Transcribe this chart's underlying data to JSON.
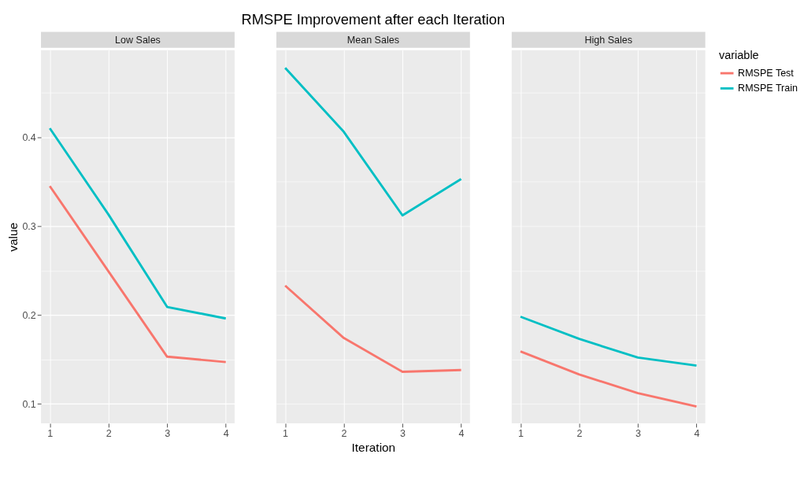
{
  "chart_data": [
    {
      "type": "line",
      "subtitle": "Low Sales",
      "ylabel": "value",
      "x": [
        1,
        2,
        3,
        4
      ],
      "xlim": [
        0.85,
        4.15
      ],
      "xticks": [
        1,
        2,
        3,
        4
      ],
      "ylim": [
        0.078,
        0.498
      ],
      "yticks": [
        {
          "value": 0.1,
          "label": "0.1"
        },
        {
          "value": 0.15,
          "label": null
        },
        {
          "value": 0.2,
          "label": "0.2"
        },
        {
          "value": 0.25,
          "label": null
        },
        {
          "value": 0.3,
          "label": "0.3"
        },
        {
          "value": 0.35,
          "label": null
        },
        {
          "value": 0.4,
          "label": "0.4"
        },
        {
          "value": 0.45,
          "label": null
        }
      ],
      "grid": true,
      "legend": "right",
      "line_style": "solid",
      "marker": "none",
      "series": [
        {
          "name": "RMSPE Test",
          "color": "#f8766d",
          "values": [
            0.345,
            0.249,
            0.153,
            0.147
          ]
        },
        {
          "name": "RMSPE Train",
          "color": "#00bfc4",
          "values": [
            0.41,
            0.313,
            0.209,
            0.196
          ]
        }
      ]
    },
    {
      "type": "line",
      "title": "RMSPE Improvement after each Iteration",
      "subtitle": "Mean Sales",
      "xlabel": "Iteration",
      "x": [
        1,
        2,
        3,
        4
      ],
      "xlim": [
        0.85,
        4.15
      ],
      "xticks": [
        1,
        2,
        3,
        4
      ],
      "ylim": [
        0.078,
        0.498
      ],
      "yticks": [
        {
          "value": 0.1,
          "label": null
        },
        {
          "value": 0.15,
          "label": null
        },
        {
          "value": 0.2,
          "label": null
        },
        {
          "value": 0.25,
          "label": null
        },
        {
          "value": 0.3,
          "label": null
        },
        {
          "value": 0.35,
          "label": null
        },
        {
          "value": 0.4,
          "label": null
        },
        {
          "value": 0.45,
          "label": null
        }
      ],
      "tick_labels": "x",
      "grid": true,
      "legend": "right",
      "line_style": "solid",
      "marker": "none",
      "series": [
        {
          "name": "RMSPE Test",
          "color": "#f8766d",
          "values": [
            0.233,
            0.174,
            0.136,
            0.138
          ]
        },
        {
          "name": "RMSPE Train",
          "color": "#00bfc4",
          "values": [
            0.478,
            0.406,
            0.312,
            0.353
          ]
        }
      ]
    },
    {
      "type": "line",
      "subtitle": "High Sales",
      "x": [
        1,
        2,
        3,
        4
      ],
      "xlim": [
        0.85,
        4.15
      ],
      "xticks": [
        1,
        2,
        3,
        4
      ],
      "ylim": [
        0.078,
        0.498
      ],
      "yticks": [
        {
          "value": 0.1,
          "label": null
        },
        {
          "value": 0.15,
          "label": null
        },
        {
          "value": 0.2,
          "label": null
        },
        {
          "value": 0.25,
          "label": null
        },
        {
          "value": 0.3,
          "label": null
        },
        {
          "value": 0.35,
          "label": null
        },
        {
          "value": 0.4,
          "label": null
        },
        {
          "value": 0.45,
          "label": null
        }
      ],
      "tick_labels": "x",
      "grid": true,
      "legend": "right",
      "legend_title": "variable",
      "line_style": "solid",
      "marker": "none",
      "series": [
        {
          "name": "RMSPE Test",
          "color": "#f8766d",
          "values": [
            0.159,
            0.133,
            0.112,
            0.097
          ]
        },
        {
          "name": "RMSPE Train",
          "color": "#00bfc4",
          "values": [
            0.198,
            0.173,
            0.152,
            0.143
          ]
        }
      ]
    }
  ]
}
